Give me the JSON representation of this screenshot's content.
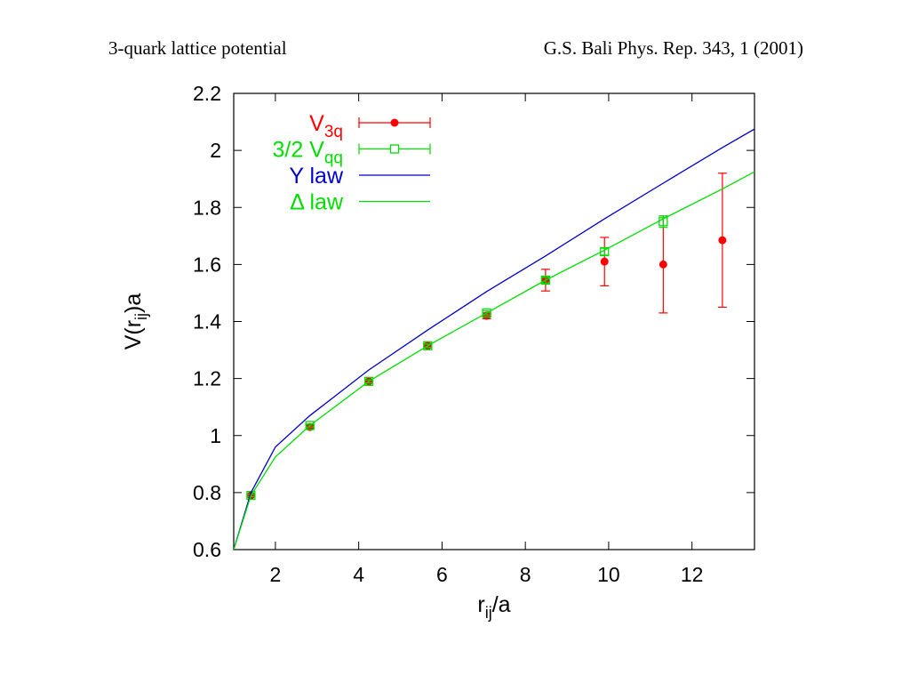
{
  "slide": {
    "title": "3-quark lattice potential",
    "reference": "G.S. Bali Phys. Rep. 343, 1 (2001)"
  },
  "chart_data": {
    "type": "scatter",
    "xlabel": {
      "base": "r",
      "sub": "ij",
      "suffix": "/a"
    },
    "ylabel": {
      "prefix": "V(r",
      "sub": "ij",
      "suffix": ")a"
    },
    "xlim": [
      1,
      13.5
    ],
    "ylim": [
      0.6,
      2.2
    ],
    "xticks": [
      2,
      4,
      6,
      8,
      10,
      12
    ],
    "yticks": [
      0.6,
      0.8,
      1,
      1.2,
      1.4,
      1.6,
      1.8,
      2,
      2.2
    ],
    "grid": false,
    "legend_position": "top-left",
    "series": [
      {
        "name": "V_3q",
        "label": {
          "base": "V",
          "sub": "3q"
        },
        "kind": "points-errorbars",
        "marker": "filled-circle",
        "color": "#ff0000",
        "points": [
          {
            "x": 1.414,
            "y": 0.79,
            "err": 0.005
          },
          {
            "x": 2.828,
            "y": 1.03,
            "err": 0.007
          },
          {
            "x": 4.243,
            "y": 1.19,
            "err": 0.006
          },
          {
            "x": 5.657,
            "y": 1.315,
            "err": 0.008
          },
          {
            "x": 7.071,
            "y": 1.42,
            "err": 0.01
          },
          {
            "x": 8.485,
            "y": 1.545,
            "err": 0.038
          },
          {
            "x": 9.9,
            "y": 1.61,
            "err": 0.085
          },
          {
            "x": 11.31,
            "y": 1.6,
            "err": 0.17
          },
          {
            "x": 12.73,
            "y": 1.685,
            "err": 0.235
          }
        ]
      },
      {
        "name": "3/2 V_qq",
        "label": {
          "base": "3/2 V",
          "sub": "qq"
        },
        "kind": "points-errorbars",
        "marker": "open-square",
        "color": "#00dd00",
        "points": [
          {
            "x": 1.414,
            "y": 0.79,
            "err": 0.004
          },
          {
            "x": 2.828,
            "y": 1.035,
            "err": 0.005
          },
          {
            "x": 4.243,
            "y": 1.19,
            "err": 0.005
          },
          {
            "x": 5.657,
            "y": 1.315,
            "err": 0.006
          },
          {
            "x": 7.071,
            "y": 1.43,
            "err": 0.007
          },
          {
            "x": 8.485,
            "y": 1.545,
            "err": 0.01
          },
          {
            "x": 9.9,
            "y": 1.645,
            "err": 0.012
          },
          {
            "x": 11.31,
            "y": 1.75,
            "err": 0.02
          }
        ]
      },
      {
        "name": "Y law",
        "label": {
          "base": "Y law",
          "sub": ""
        },
        "kind": "line",
        "color": "#0000cc",
        "points": [
          {
            "x": 1.0,
            "y": 0.6
          },
          {
            "x": 1.414,
            "y": 0.8
          },
          {
            "x": 2.0,
            "y": 0.96
          },
          {
            "x": 2.828,
            "y": 1.07
          },
          {
            "x": 4.243,
            "y": 1.23
          },
          {
            "x": 5.657,
            "y": 1.37
          },
          {
            "x": 7.071,
            "y": 1.505
          },
          {
            "x": 8.485,
            "y": 1.63
          },
          {
            "x": 9.9,
            "y": 1.76
          },
          {
            "x": 11.31,
            "y": 1.885
          },
          {
            "x": 12.73,
            "y": 2.01
          },
          {
            "x": 13.5,
            "y": 2.075
          }
        ]
      },
      {
        "name": "Δ law",
        "label": {
          "base": "Δ law",
          "sub": ""
        },
        "kind": "line",
        "color": "#00dd00",
        "points": [
          {
            "x": 1.0,
            "y": 0.6
          },
          {
            "x": 1.414,
            "y": 0.79
          },
          {
            "x": 2.0,
            "y": 0.925
          },
          {
            "x": 2.828,
            "y": 1.035
          },
          {
            "x": 4.243,
            "y": 1.19
          },
          {
            "x": 5.657,
            "y": 1.315
          },
          {
            "x": 7.071,
            "y": 1.43
          },
          {
            "x": 8.485,
            "y": 1.545
          },
          {
            "x": 9.9,
            "y": 1.65
          },
          {
            "x": 11.31,
            "y": 1.76
          },
          {
            "x": 12.73,
            "y": 1.865
          },
          {
            "x": 13.5,
            "y": 1.925
          }
        ]
      }
    ]
  }
}
